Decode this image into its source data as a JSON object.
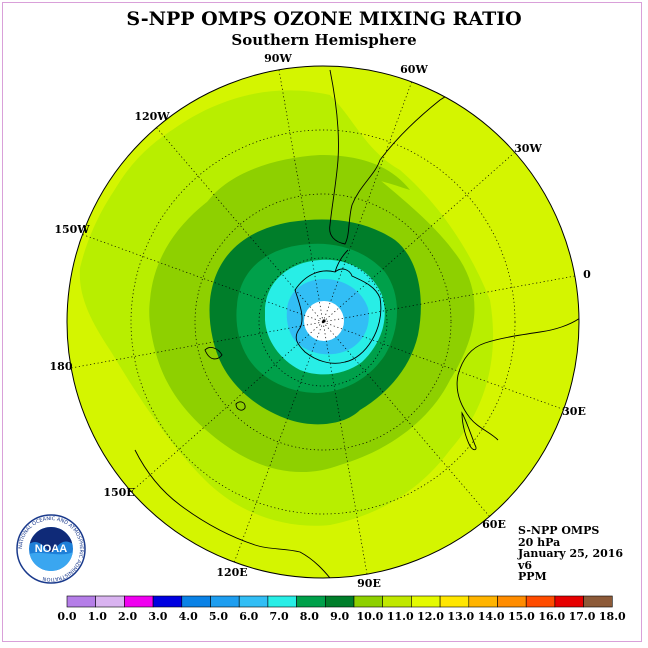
{
  "title": "S-NPP OMPS OZONE MIXING RATIO",
  "subtitle": "Southern Hemisphere",
  "longitude_labels": {
    "lon_90w": "90W",
    "lon_60w": "60W",
    "lon_30w": "30W",
    "lon_0": "0",
    "lon_30e": "30E",
    "lon_60e": "60E",
    "lon_90e": "90E",
    "lon_120e": "120E",
    "lon_150e": "150E",
    "lon_180": "180",
    "lon_150w": "150W",
    "lon_120w": "120W"
  },
  "info": {
    "instrument": "S-NPP OMPS",
    "level": "20 hPa",
    "date": "January 25, 2016",
    "version": "v6",
    "units": "PPM"
  },
  "logo": {
    "icon": "noaa-logo-icon",
    "text": "NOAA",
    "ring_text": "NATIONAL OCEANIC AND ATMOSPHERIC ADMINISTRATION"
  },
  "colorbar": {
    "ticks": [
      "0.0",
      "1.0",
      "2.0",
      "3.0",
      "4.0",
      "5.0",
      "6.0",
      "7.0",
      "8.0",
      "9.0",
      "10.0",
      "11.0",
      "12.0",
      "13.0",
      "14.0",
      "15.0",
      "16.0",
      "17.0",
      "18.0"
    ],
    "colors": [
      "#b57ee8",
      "#d9b3f0",
      "#f000f0",
      "#0000e0",
      "#0a82e6",
      "#1e9ef0",
      "#32bef5",
      "#28eee6",
      "#00a04a",
      "#007e2a",
      "#8ed000",
      "#c0e800",
      "#e4fa00",
      "#ffe600",
      "#ffb400",
      "#ff8c00",
      "#ff4c00",
      "#e60000",
      "#8c5a38"
    ]
  },
  "map_colors": {
    "background": "#d4f500",
    "band_11": "#b8ee00",
    "band_10": "#8ed000",
    "band_9": "#007e2a",
    "band_8": "#00a04a",
    "band_7": "#28eee6",
    "band_6": "#32bef5",
    "center": "#ffffff"
  }
}
